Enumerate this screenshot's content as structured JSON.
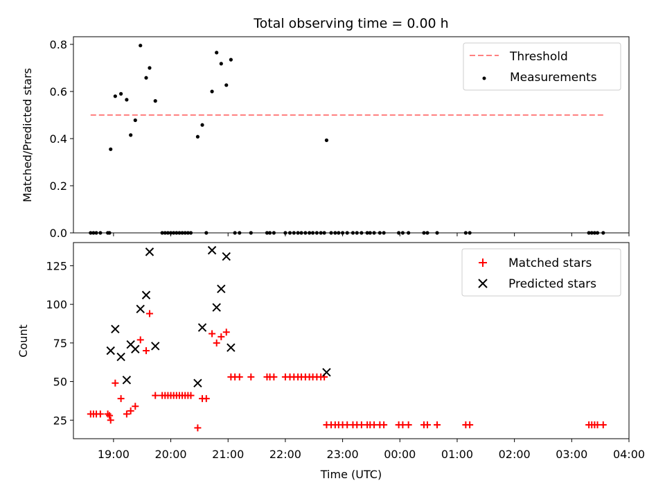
{
  "title": "Total observing time = 0.00 h",
  "colors": {
    "threshold": "#ff8080",
    "measurement": "#000000",
    "matched": "#ff0000",
    "predicted": "#000000"
  },
  "chart_data": [
    {
      "type": "scatter",
      "ylabel": "Matched/Predicted stars",
      "xlabel": "",
      "xlim": [
        18.3,
        28.0
      ],
      "ylim": [
        0,
        0.8
      ],
      "yticks": [
        0.0,
        0.2,
        0.4,
        0.6,
        0.8
      ],
      "ytick_labels": [
        "0.0",
        "0.2",
        "0.4",
        "0.6",
        "0.8"
      ],
      "legend": {
        "position": "top-right",
        "entries": [
          "Threshold",
          "Measurements"
        ]
      },
      "threshold": {
        "name": "Threshold",
        "value": 0.5,
        "x_range": [
          18.6,
          27.55
        ]
      },
      "series": [
        {
          "name": "Measurements",
          "x": [
            18.95,
            19.03,
            19.13,
            19.23,
            19.3,
            19.38,
            19.47,
            19.57,
            19.63,
            19.73,
            20.47,
            20.55,
            20.72,
            20.8,
            20.88,
            20.97,
            21.05,
            22.72,
            18.6,
            18.65,
            18.7,
            18.77,
            18.9,
            18.93,
            19.85,
            19.9,
            19.95,
            20.0,
            20.05,
            20.1,
            20.15,
            20.2,
            20.25,
            20.3,
            20.35,
            20.62,
            21.12,
            21.2,
            21.4,
            21.68,
            21.73,
            21.8,
            22.0,
            22.08,
            22.15,
            22.22,
            22.28,
            22.35,
            22.42,
            22.48,
            22.55,
            22.62,
            22.68,
            22.8,
            22.87,
            22.93,
            23.0,
            23.08,
            23.18,
            23.25,
            23.33,
            23.43,
            23.48,
            23.55,
            23.65,
            23.72,
            23.98,
            24.05,
            24.15,
            24.42,
            24.48,
            24.65,
            25.15,
            25.22,
            27.3,
            27.35,
            27.4,
            27.45,
            27.55
          ],
          "y": [
            0.355,
            0.58,
            0.59,
            0.565,
            0.415,
            0.478,
            0.795,
            0.658,
            0.7,
            0.56,
            0.408,
            0.458,
            0.6,
            0.765,
            0.718,
            0.627,
            0.735,
            0.393,
            0,
            0,
            0,
            0,
            0,
            0,
            0,
            0,
            0,
            0,
            0,
            0,
            0,
            0,
            0,
            0,
            0,
            0,
            0,
            0,
            0,
            0,
            0,
            0,
            0,
            0,
            0,
            0,
            0,
            0,
            0,
            0,
            0,
            0,
            0,
            0,
            0,
            0,
            0,
            0,
            0,
            0,
            0,
            0,
            0,
            0,
            0,
            0,
            0,
            0,
            0,
            0,
            0,
            0,
            0,
            0,
            0,
            0,
            0,
            0,
            0
          ]
        }
      ]
    },
    {
      "type": "scatter",
      "ylabel": "Count",
      "xlabel": "Time (UTC)",
      "xlim": [
        18.3,
        28.0
      ],
      "ylim": [
        13,
        140
      ],
      "xticks": [
        19,
        20,
        21,
        22,
        23,
        24,
        25,
        26,
        27,
        28
      ],
      "xtick_labels": [
        "19:00",
        "20:00",
        "21:00",
        "22:00",
        "23:00",
        "00:00",
        "01:00",
        "02:00",
        "03:00",
        "04:00"
      ],
      "yticks": [
        25,
        50,
        75,
        100,
        125
      ],
      "ytick_labels": [
        "25",
        "50",
        "75",
        "100",
        "125"
      ],
      "legend": {
        "position": "top-right",
        "entries": [
          "Matched stars",
          "Predicted stars"
        ]
      },
      "series": [
        {
          "name": "Matched stars",
          "x": [
            18.6,
            18.65,
            18.7,
            18.77,
            18.9,
            18.93,
            18.95,
            19.03,
            19.13,
            19.23,
            19.3,
            19.38,
            19.47,
            19.57,
            19.63,
            19.73,
            19.85,
            19.9,
            19.95,
            20.0,
            20.05,
            20.1,
            20.15,
            20.2,
            20.25,
            20.3,
            20.35,
            20.47,
            20.55,
            20.62,
            20.72,
            20.8,
            20.88,
            20.97,
            21.05,
            21.12,
            21.2,
            21.4,
            21.68,
            21.73,
            21.8,
            22.0,
            22.08,
            22.15,
            22.22,
            22.28,
            22.35,
            22.42,
            22.48,
            22.55,
            22.62,
            22.68,
            22.72,
            22.8,
            22.87,
            22.93,
            23.0,
            23.08,
            23.18,
            23.25,
            23.33,
            23.43,
            23.48,
            23.55,
            23.65,
            23.72,
            23.98,
            24.05,
            24.15,
            24.42,
            24.48,
            24.65,
            25.15,
            25.22,
            27.3,
            27.35,
            27.4,
            27.45,
            27.55
          ],
          "y": [
            29,
            29,
            29,
            29,
            29,
            28,
            25,
            49,
            39,
            29,
            31,
            34,
            77,
            70,
            94,
            41,
            41,
            41,
            41,
            41,
            41,
            41,
            41,
            41,
            41,
            41,
            41,
            20,
            39,
            39,
            81,
            75,
            79,
            82,
            53,
            53,
            53,
            53,
            53,
            53,
            53,
            53,
            53,
            53,
            53,
            53,
            53,
            53,
            53,
            53,
            53,
            53,
            22,
            22,
            22,
            22,
            22,
            22,
            22,
            22,
            22,
            22,
            22,
            22,
            22,
            22,
            22,
            22,
            22,
            22,
            22,
            22,
            22,
            22,
            22,
            22,
            22,
            22,
            22
          ]
        },
        {
          "name": "Predicted stars",
          "x": [
            18.95,
            19.03,
            19.13,
            19.23,
            19.3,
            19.38,
            19.47,
            19.57,
            19.63,
            19.73,
            20.47,
            20.55,
            20.72,
            20.8,
            20.88,
            20.97,
            21.05,
            22.72
          ],
          "y": [
            70,
            84,
            66,
            51,
            74,
            71,
            97,
            106,
            134,
            73,
            49,
            85,
            135,
            98,
            110,
            131,
            72,
            56
          ]
        }
      ]
    }
  ]
}
